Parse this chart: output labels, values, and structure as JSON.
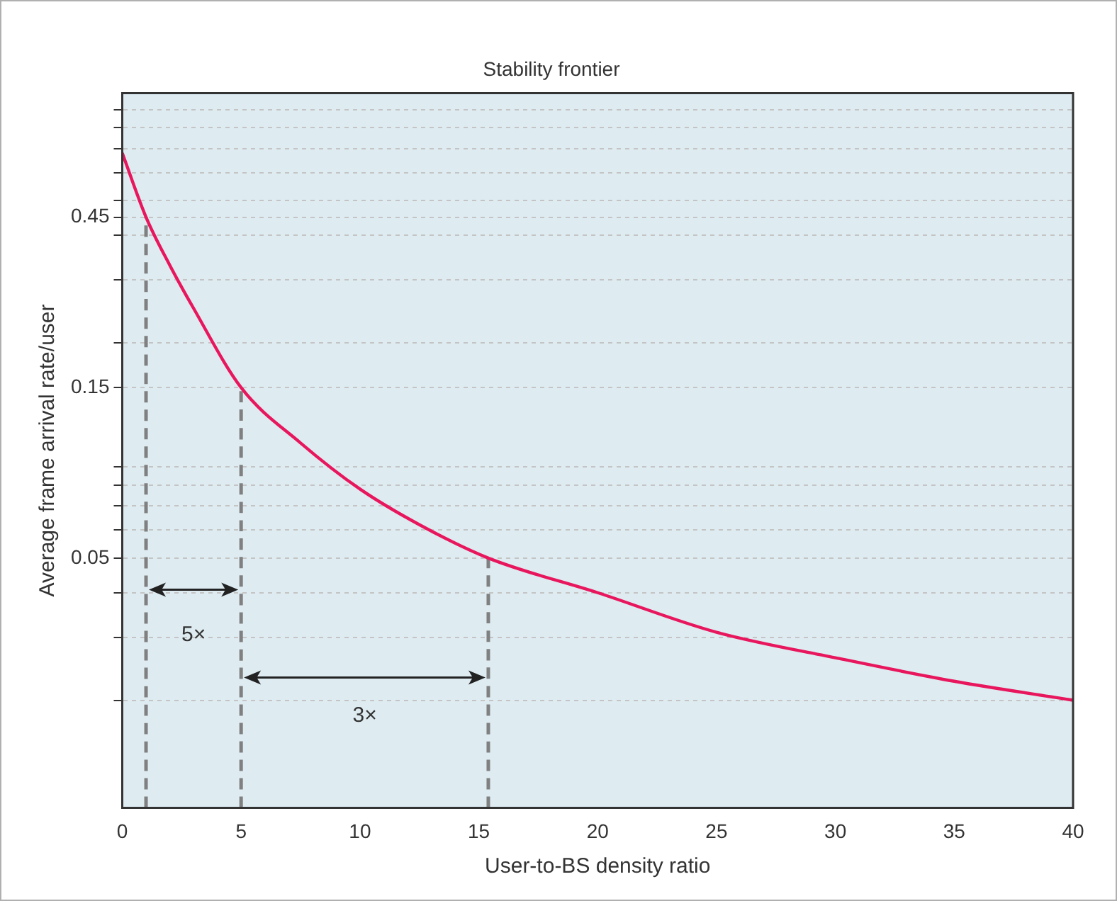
{
  "chart_data": {
    "type": "line",
    "title": "Stability frontier",
    "xlabel": "User-to-BS density ratio",
    "ylabel": "Average frame arrival rate/user",
    "log": "y",
    "grid": "y",
    "marker": "none",
    "xlim": [
      0,
      40
    ],
    "xticks": [
      0,
      5,
      10,
      15,
      20,
      25,
      30,
      35,
      40
    ],
    "ylim": [
      0.01,
      1
    ],
    "yticks": [
      {
        "value": 0.02,
        "label": null
      },
      {
        "value": 0.03,
        "label": null
      },
      {
        "value": 0.04,
        "label": null
      },
      0.05,
      {
        "value": 0.06,
        "label": null
      },
      {
        "value": 0.07,
        "label": null
      },
      {
        "value": 0.08,
        "label": null
      },
      {
        "value": 0.09,
        "label": null
      },
      0.15,
      {
        "value": 0.2,
        "label": null
      },
      {
        "value": 0.3,
        "label": null
      },
      {
        "value": 0.4,
        "label": null
      },
      0.45,
      {
        "value": 0.5,
        "label": null
      },
      {
        "value": 0.6,
        "label": null
      },
      {
        "value": 0.7,
        "label": null
      },
      {
        "value": 0.8,
        "label": null
      },
      {
        "value": 0.9,
        "label": null
      }
    ],
    "series": [
      {
        "color": "#e8175d",
        "line_style": "solid",
        "x": [
          0,
          1,
          2,
          3,
          5,
          7.5,
          10,
          12.5,
          15.4,
          20,
          25,
          30,
          35,
          40
        ],
        "values": [
          0.68,
          0.45,
          0.33,
          0.25,
          0.15,
          0.105,
          0.078,
          0.062,
          0.05,
          0.04,
          0.031,
          0.0263,
          0.0226,
          0.02
        ]
      },
      {
        "color": "#808080",
        "line_style": "dashed",
        "x": [
          1,
          1
        ],
        "values": [
          0.01,
          0.45
        ]
      },
      {
        "color": "#808080",
        "line_style": "dashed",
        "x": [
          5,
          5
        ],
        "values": [
          0.01,
          0.15
        ]
      },
      {
        "color": "#808080",
        "line_style": "dashed",
        "x": [
          15.4,
          15.4
        ],
        "values": [
          0.01,
          0.05
        ]
      }
    ],
    "annotations": [
      "5×",
      "3×"
    ]
  }
}
